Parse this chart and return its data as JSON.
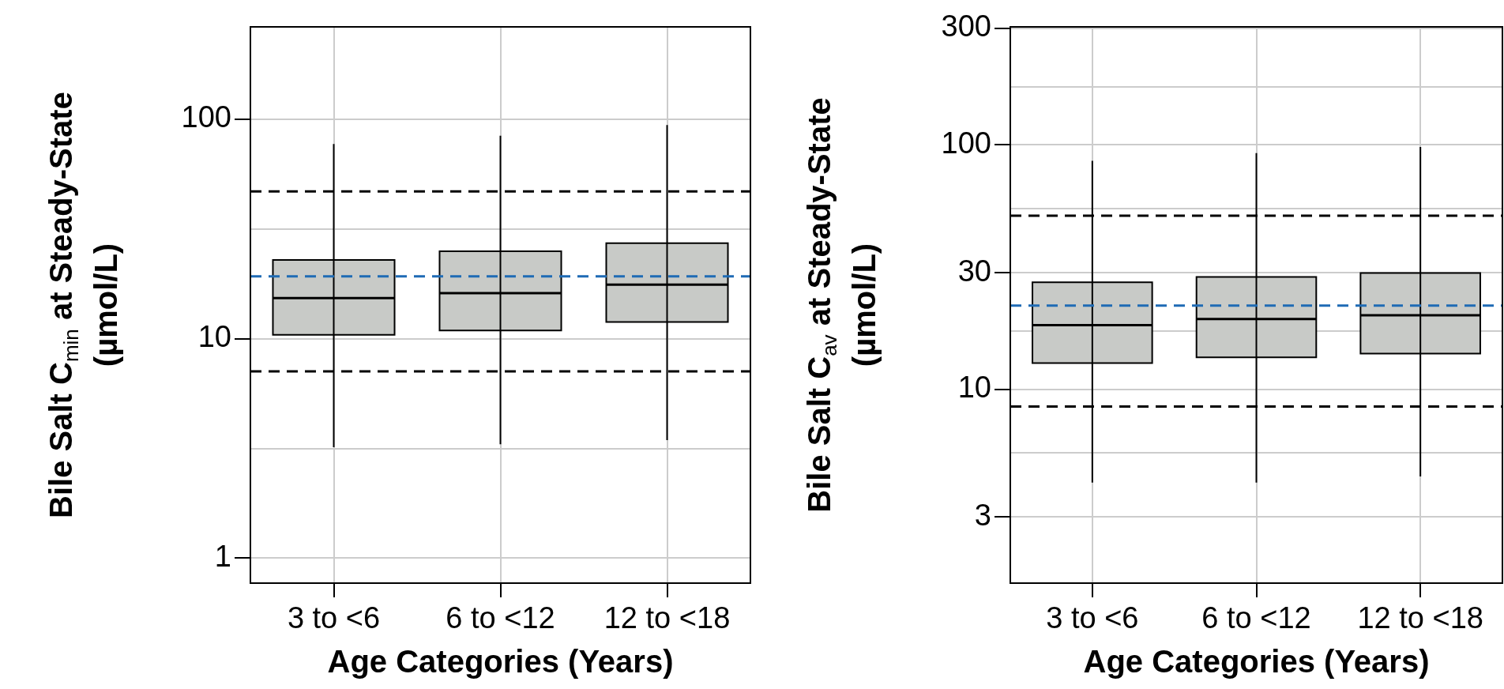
{
  "chart_data": [
    {
      "type": "box",
      "xlabel": "Age Categories (Years)",
      "ylabel": "Bile Salt C$_{min}$ at Steady-State\n(µmol/L)",
      "categories": [
        "3 to <6",
        "6 to <12",
        "12 to <18"
      ],
      "series": [
        {
          "color": "#c8cac7",
          "boxes": [
            {
              "low": 3.2,
              "q1": 10.4,
              "median": 15.3,
              "q3": 22.8,
              "high": 77
            },
            {
              "low": 3.3,
              "q1": 10.9,
              "median": 16.1,
              "q3": 25,
              "high": 84
            },
            {
              "low": 3.45,
              "q1": 11.9,
              "median": 17.6,
              "q3": 27.2,
              "high": 94
            }
          ]
        }
      ],
      "log": "y",
      "ylim": [
        0.77,
        263
      ],
      "yticks": [
        1,
        {
          "value": 3.16,
          "label": null
        },
        10,
        {
          "value": 31.6,
          "label": null
        },
        100
      ],
      "grid": true,
      "ref_lines": [
        {
          "axis": "y",
          "value": 46.8,
          "color": "#000000",
          "line_style": "dashed"
        },
        {
          "axis": "y",
          "value": 7.1,
          "color": "#000000",
          "line_style": "dashed"
        },
        {
          "axis": "y",
          "value": 19.2,
          "color": "#1f6bb5",
          "line_style": "dashed"
        }
      ]
    },
    {
      "type": "box",
      "xlabel": "Age Categories (Years)",
      "ylabel": "Bile Salt C$_{av}$ at Steady-State\n(µmol/L)",
      "categories": [
        "3 to <6",
        "6 to <12",
        "12 to <18"
      ],
      "series": [
        {
          "color": "#c8cac7",
          "boxes": [
            {
              "low": 4.15,
              "q1": 12.8,
              "median": 18.3,
              "q3": 27.4,
              "high": 86
            },
            {
              "low": 4.15,
              "q1": 13.5,
              "median": 19.4,
              "q3": 28.8,
              "high": 92.6
            },
            {
              "low": 4.4,
              "q1": 14,
              "median": 20.1,
              "q3": 29.9,
              "high": 98
            }
          ]
        }
      ],
      "log": "y",
      "ylim": [
        1.61,
        304
      ],
      "yticks": [
        3,
        {
          "value": 5.48,
          "label": null
        },
        10,
        {
          "value": 17.3,
          "label": null
        },
        30,
        {
          "value": 54.8,
          "label": null
        },
        100,
        {
          "value": 173,
          "label": null
        },
        300
      ],
      "grid": true,
      "ref_lines": [
        {
          "axis": "y",
          "value": 51.3,
          "color": "#000000",
          "line_style": "dashed"
        },
        {
          "axis": "y",
          "value": 8.5,
          "color": "#000000",
          "line_style": "dashed"
        },
        {
          "axis": "y",
          "value": 22,
          "color": "#1f6bb5",
          "line_style": "dashed"
        }
      ]
    }
  ]
}
